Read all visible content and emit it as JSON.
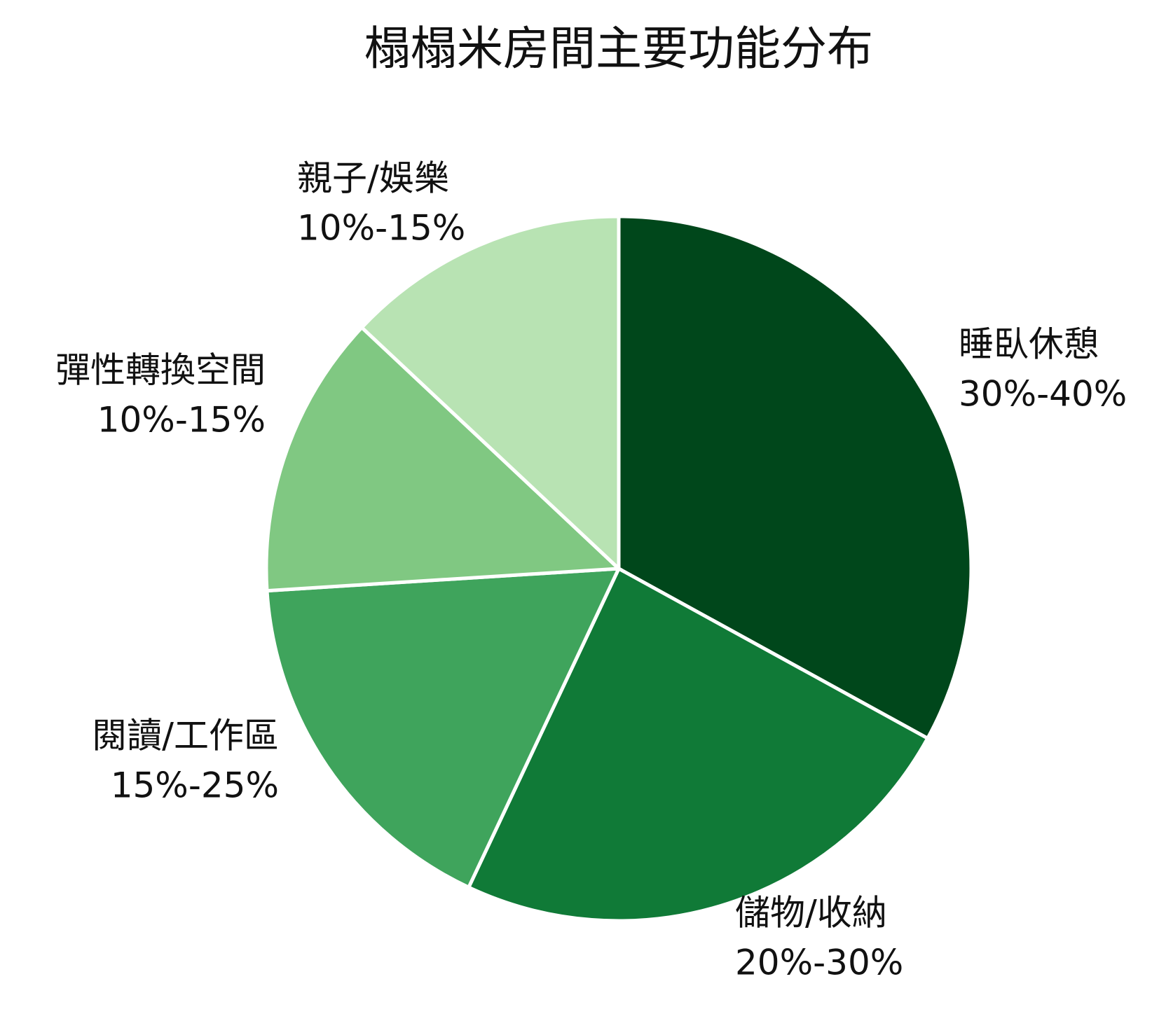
{
  "chart_data": {
    "type": "pie",
    "title": "榻榻米房間主要功能分布",
    "categories": [
      "睡臥休憩",
      "儲物/收納",
      "閱讀/工作區",
      "彈性轉換空間",
      "親子/娛樂"
    ],
    "range_labels": [
      "30%-40%",
      "20%-30%",
      "15%-25%",
      "10%-15%",
      "10%-15%"
    ],
    "values": [
      33,
      24,
      17,
      13,
      13
    ],
    "colors": [
      "#00471b",
      "#107a37",
      "#3fa45c",
      "#80c882",
      "#b8e3b3"
    ]
  }
}
